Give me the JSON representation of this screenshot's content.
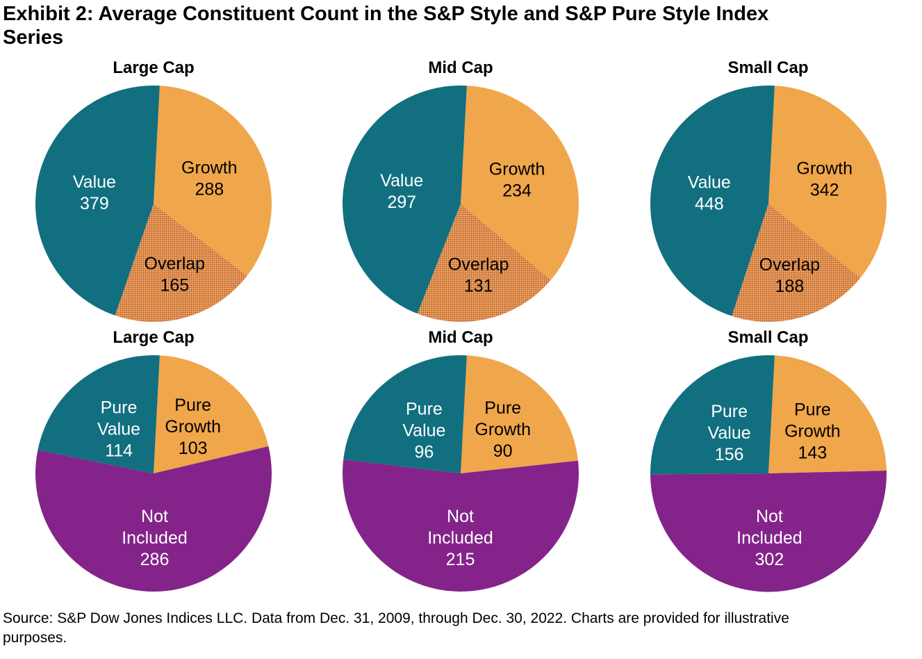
{
  "header": {
    "title_line1": "Exhibit 2: Average Constituent Count in the S&P Style and S&P Pure Style Index",
    "title_line2": "Series"
  },
  "footer": {
    "source_line1": "Source: S&P Dow Jones Indices LLC. Data from Dec. 31, 2009, through Dec. 30, 2022. Charts are provided for illustrative",
    "source_line2": "purposes."
  },
  "colors": {
    "value_teal": "#116f80",
    "growth_orange": "#f0a64b",
    "not_included_purple": "#84248a",
    "overlap_dot": "#963a5f",
    "text_dark": "#000000",
    "text_light": "#ffffff"
  },
  "chart_data": [
    {
      "type": "pie",
      "group": "S&P Style",
      "title": "Large Cap",
      "start_angle_deg": 3,
      "legend": "labels inside slices",
      "grid": false,
      "slices": [
        {
          "label": "Growth",
          "value": 288,
          "color": "growth_orange",
          "pattern": false,
          "text": "dark",
          "label_r": 0.52
        },
        {
          "label": "Overlap",
          "value": 165,
          "color": "growth_orange",
          "pattern": true,
          "text": "dark",
          "label_r": 0.62
        },
        {
          "label": "Value",
          "value": 379,
          "color": "value_teal",
          "pattern": false,
          "text": "light",
          "label_r": 0.51
        }
      ]
    },
    {
      "type": "pie",
      "group": "S&P Style",
      "title": "Mid Cap",
      "start_angle_deg": 3,
      "legend": "labels inside slices",
      "grid": false,
      "slices": [
        {
          "label": "Growth",
          "value": 234,
          "color": "growth_orange",
          "pattern": false,
          "text": "dark",
          "label_r": 0.52
        },
        {
          "label": "Overlap",
          "value": 131,
          "color": "growth_orange",
          "pattern": true,
          "text": "dark",
          "label_r": 0.62
        },
        {
          "label": "Value",
          "value": 297,
          "color": "value_teal",
          "pattern": false,
          "text": "light",
          "label_r": 0.51
        }
      ]
    },
    {
      "type": "pie",
      "group": "S&P Style",
      "title": "Small Cap",
      "start_angle_deg": 3,
      "legend": "labels inside slices",
      "grid": false,
      "slices": [
        {
          "label": "Growth",
          "value": 342,
          "color": "growth_orange",
          "pattern": false,
          "text": "dark",
          "label_r": 0.52
        },
        {
          "label": "Overlap",
          "value": 188,
          "color": "growth_orange",
          "pattern": true,
          "text": "dark",
          "label_r": 0.63
        },
        {
          "label": "Value",
          "value": 448,
          "color": "value_teal",
          "pattern": false,
          "text": "light",
          "label_r": 0.51
        }
      ]
    },
    {
      "type": "pie",
      "group": "S&P Pure Style",
      "title": "Large Cap",
      "start_angle_deg": 3,
      "legend": "labels inside slices",
      "grid": false,
      "slices": [
        {
          "label": "Pure Growth",
          "value": 103,
          "color": "growth_orange",
          "pattern": false,
          "text": "dark",
          "label_r": 0.52
        },
        {
          "label": "Not Included",
          "value": 286,
          "color": "not_included_purple",
          "pattern": false,
          "text": "light",
          "label_r": 0.54
        },
        {
          "label": "Pure Value",
          "value": 114,
          "color": "value_teal",
          "pattern": false,
          "text": "light",
          "label_r": 0.48
        }
      ]
    },
    {
      "type": "pie",
      "group": "S&P Pure Style",
      "title": "Mid Cap",
      "start_angle_deg": 3,
      "legend": "labels inside slices",
      "grid": false,
      "slices": [
        {
          "label": "Pure Growth",
          "value": 90,
          "color": "growth_orange",
          "pattern": false,
          "text": "dark",
          "label_r": 0.52
        },
        {
          "label": "Not Included",
          "value": 215,
          "color": "not_included_purple",
          "pattern": false,
          "text": "light",
          "label_r": 0.54
        },
        {
          "label": "Pure Value",
          "value": 96,
          "color": "value_teal",
          "pattern": false,
          "text": "light",
          "label_r": 0.48
        }
      ]
    },
    {
      "type": "pie",
      "group": "S&P Pure Style",
      "title": "Small Cap",
      "start_angle_deg": 3,
      "legend": "labels inside slices",
      "grid": false,
      "slices": [
        {
          "label": "Pure Growth",
          "value": 143,
          "color": "growth_orange",
          "pattern": false,
          "text": "dark",
          "label_r": 0.52
        },
        {
          "label": "Not Included",
          "value": 302,
          "color": "not_included_purple",
          "pattern": false,
          "text": "light",
          "label_r": 0.54
        },
        {
          "label": "Pure Value",
          "value": 156,
          "color": "value_teal",
          "pattern": false,
          "text": "light",
          "label_r": 0.48
        }
      ]
    }
  ]
}
